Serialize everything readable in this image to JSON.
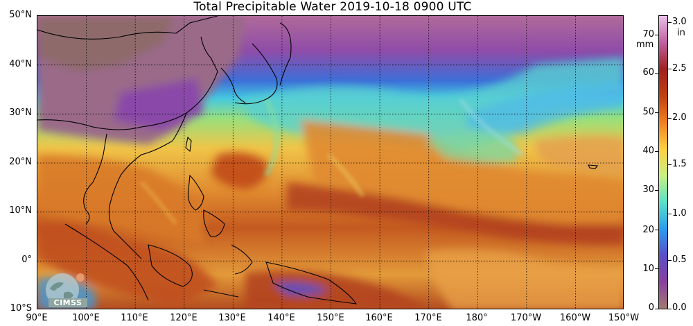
{
  "title": "Total Precipitable Water  2019-10-18 0900 UTC",
  "map": {
    "lat_labels": [
      "50°N",
      "40°N",
      "30°N",
      "20°N",
      "10°N",
      "0°",
      "10°S"
    ],
    "lon_labels": [
      "90°E",
      "100°E",
      "110°E",
      "120°E",
      "130°E",
      "140°E",
      "150°E",
      "160°E",
      "170°E",
      "180°",
      "170°W",
      "160°W",
      "150°W"
    ],
    "extent": {
      "lon_min": 90,
      "lon_max": 210,
      "lat_min": -10,
      "lat_max": 50
    },
    "grid": true
  },
  "colorbar": {
    "mm_ticks": [
      "70",
      "60",
      "50",
      "40",
      "30",
      "20",
      "10",
      "0"
    ],
    "mm_unit": "mm",
    "in_ticks": [
      "3.0",
      "2.5",
      "2.0",
      "1.5",
      "1.0",
      "0.5",
      "0.0"
    ],
    "in_unit": "in",
    "range_mm": [
      0,
      76
    ],
    "colors": [
      "#a07a70",
      "#8a3fa0",
      "#5a4fc8",
      "#2a9df0",
      "#58e2c8",
      "#c8f080",
      "#ffd040",
      "#f08020",
      "#c04010",
      "#a02020",
      "#c060a0",
      "#e8c0e8"
    ]
  },
  "logo": {
    "text": "CIMSS",
    "icon": "cimss-globe-icon"
  },
  "colors": {
    "dry": "#8a5a9a",
    "moist": "#f0a040",
    "very_moist": "#b0401c",
    "land_outline": "#000000"
  }
}
